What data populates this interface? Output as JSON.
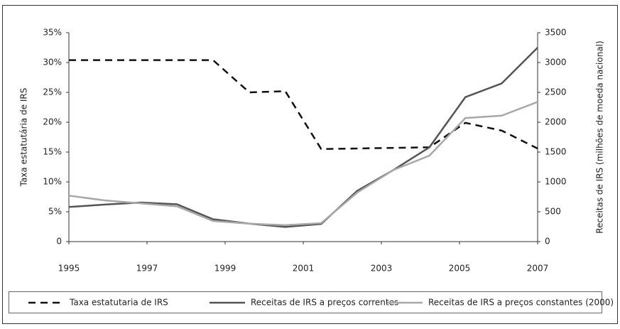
{
  "chart_data": {
    "type": "line",
    "x": [
      1995,
      1995.92,
      1996.85,
      1997.77,
      1998.69,
      1999.62,
      2000.54,
      2001.46,
      2002.38,
      2003.31,
      2004.23,
      2005.15,
      2006.08,
      2007
    ],
    "xlim": [
      1995,
      2007
    ],
    "xticks": [
      1995,
      1997,
      1999,
      2001,
      2003,
      2005,
      2007
    ],
    "ylabel": "Taxa estatutária de IRS",
    "y2label": "Receitas de IRS (milhões de moeda nacional)",
    "ylim": [
      0,
      35
    ],
    "yticks": [
      0,
      {
        "value": 5,
        "label": "5%"
      },
      {
        "value": 10,
        "label": "10%"
      },
      {
        "value": 15,
        "label": "15%"
      },
      {
        "value": 20,
        "label": "20%"
      },
      {
        "value": 25,
        "label": "25%"
      },
      {
        "value": 30,
        "label": "30%"
      },
      {
        "value": 35,
        "label": "35%"
      }
    ],
    "y2lim": [
      0,
      3500
    ],
    "y2ticks": [
      0,
      500,
      1000,
      1500,
      2000,
      2500,
      3000,
      3500
    ],
    "series": [
      {
        "name": "Taxa estatutaria de IRS",
        "color": "#111111",
        "dashed": true,
        "values": [
          30.4,
          30.4,
          30.4,
          30.4,
          30.4,
          25.0,
          25.2,
          15.5,
          15.6,
          15.7,
          15.8,
          19.9,
          18.6,
          15.6
        ]
      },
      {
        "name": "Receitas de IRS a preços correntes",
        "color": "#555555",
        "axis": "y2",
        "values": [
          580,
          620,
          655,
          625,
          375,
          300,
          245,
          295,
          850,
          1200,
          1580,
          2420,
          2650,
          3250
        ]
      },
      {
        "name": "Receitas de IRS a preços constantes (2000)",
        "color": "#a8a8a8",
        "axis": "y2",
        "values": [
          770,
          690,
          640,
          590,
          345,
          300,
          275,
          310,
          820,
          1200,
          1440,
          2070,
          2110,
          2340
        ]
      }
    ]
  }
}
